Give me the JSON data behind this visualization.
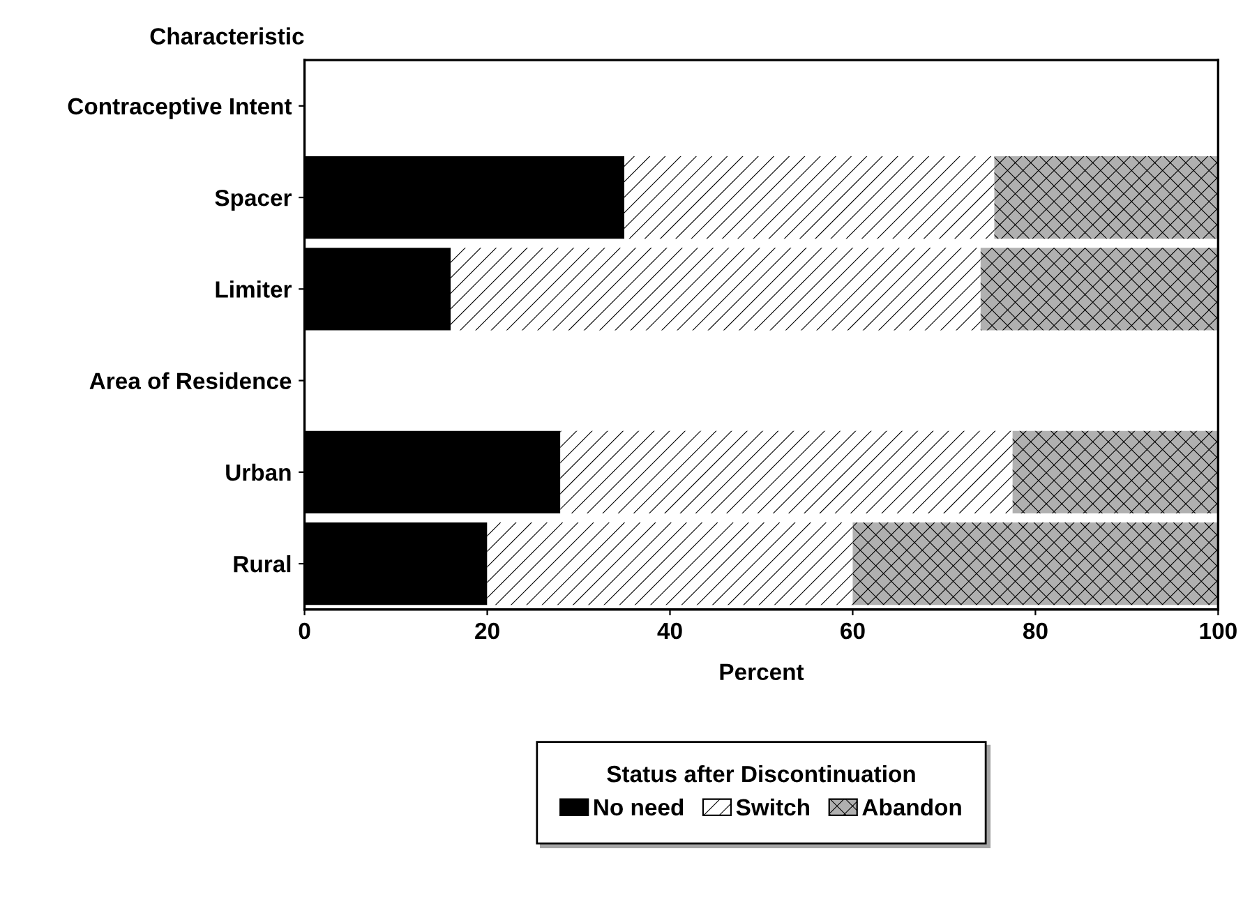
{
  "chart_data": {
    "type": "bar",
    "orientation": "horizontal",
    "stacked": true,
    "ylabel": "Characteristic",
    "xlabel": "Percent",
    "legend_title": "Status after Discontinuation",
    "categories": [
      "Contraceptive Intent",
      "Spacer",
      "Limiter",
      "Area of Residence",
      "Urban",
      "Rural"
    ],
    "series": [
      {
        "name": "No need",
        "color": "#000000",
        "values": [
          null,
          35,
          16,
          null,
          28,
          20
        ]
      },
      {
        "name": "Switch",
        "color": "#ffffff",
        "values": [
          null,
          40.5,
          58,
          null,
          49.5,
          40
        ]
      },
      {
        "name": "Abandon",
        "color": "#b0b0b0",
        "values": [
          null,
          24.5,
          26,
          null,
          22.5,
          40
        ]
      }
    ],
    "xlim": [
      0,
      100
    ],
    "xticks": [
      0,
      20,
      40,
      60,
      80,
      100
    ],
    "grid": false,
    "legend": "bottom"
  }
}
